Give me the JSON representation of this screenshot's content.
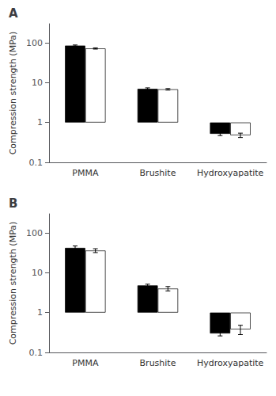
{
  "chart_data": [
    {
      "type": "bar",
      "title": "A",
      "categories": [
        "PMMA",
        "Brushite",
        "Hydroxyapatite"
      ],
      "ylabel": "Compression strength (MPa)",
      "series": [
        {
          "color": "#000000",
          "values": [
            85,
            7.0,
            0.52
          ],
          "errors": [
            3.0,
            0.4,
            0.05
          ]
        },
        {
          "color": "#ffffff",
          "values": [
            72,
            6.8,
            0.48
          ],
          "errors": [
            2.5,
            0.3,
            0.06
          ]
        }
      ],
      "ylim": [
        0.1,
        300
      ],
      "yticks": [
        0.1,
        1,
        10,
        100
      ],
      "log": "y",
      "grid": false
    },
    {
      "type": "bar",
      "title": "B",
      "categories": [
        "PMMA",
        "Brushite",
        "Hydroxyapatite"
      ],
      "ylabel": "Compression strength (MPa)",
      "series": [
        {
          "color": "#000000",
          "values": [
            42,
            4.8,
            0.3
          ],
          "errors": [
            5.0,
            0.35,
            0.04
          ]
        },
        {
          "color": "#ffffff",
          "values": [
            36,
            4.0,
            0.38
          ],
          "errors": [
            4.0,
            0.5,
            0.1
          ]
        }
      ],
      "ylim": [
        0.1,
        300
      ],
      "yticks": [
        0.1,
        1,
        10,
        100
      ],
      "log": "y",
      "grid": false
    }
  ]
}
